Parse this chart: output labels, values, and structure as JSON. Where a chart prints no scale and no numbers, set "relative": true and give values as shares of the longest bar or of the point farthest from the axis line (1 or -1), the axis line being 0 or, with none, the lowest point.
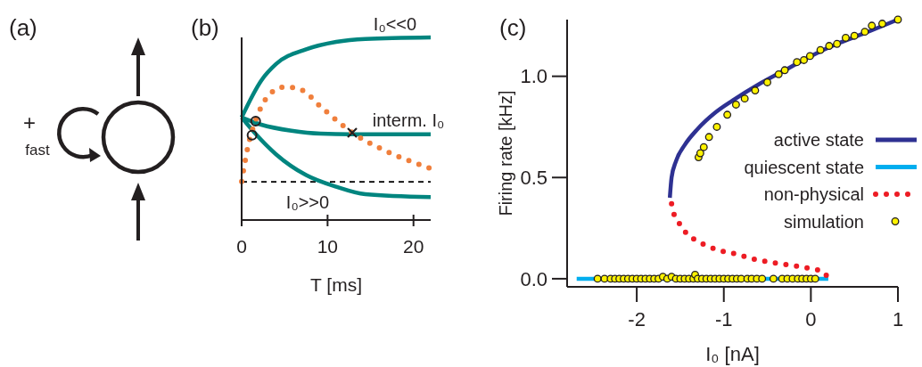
{
  "chart_data": [
    {
      "type": "other",
      "title": "(a)",
      "annotations": [
        "+",
        "fast"
      ]
    },
    {
      "type": "line",
      "title": "(b)",
      "xlabel": "T [ms]",
      "xlim": [
        0,
        22
      ],
      "xticks": [
        0,
        10,
        20
      ],
      "relative": true,
      "series": [
        {
          "type": "line",
          "color": "#00857f",
          "x": [
            0,
            2.3,
            4.0,
            7.5,
            11,
            14.4,
            22
          ],
          "values": [
            0.562,
            0.765,
            0.854,
            0.935,
            0.976,
            0.992,
            1.0
          ]
        },
        {
          "type": "line",
          "color": "#00857f",
          "x": [
            0,
            2.3,
            5.8,
            9.2,
            12.7,
            22
          ],
          "values": [
            0.562,
            0.522,
            0.489,
            0.473,
            0.47,
            0.47
          ]
        },
        {
          "type": "line",
          "color": "#00857f",
          "x": [
            0,
            1.6,
            4.0,
            7.5,
            11,
            14.4,
            22
          ],
          "values": [
            0.562,
            0.473,
            0.36,
            0.246,
            0.182,
            0.141,
            0.125
          ]
        },
        {
          "type": "line",
          "color": "#f07f3c",
          "line_style": "dotted",
          "x": [
            0,
            0.24,
            0.76,
            1.45,
            2.66,
            4.05,
            5.09,
            6.82,
            9.24,
            11.66,
            13.04,
            16.16,
            22
          ],
          "values": [
            0.211,
            0.279,
            0.408,
            0.522,
            0.652,
            0.716,
            0.729,
            0.716,
            0.619,
            0.522,
            0.473,
            0.392,
            0.282
          ]
        },
        {
          "type": "scatter",
          "marker": "circle",
          "color": "#231f20",
          "x": [
            1.63,
            1.21
          ],
          "values": [
            0.541,
            0.465
          ]
        },
        {
          "type": "scatter",
          "marker": "cross",
          "color": "#231f20",
          "x": [
            12.87
          ],
          "values": [
            0.478
          ]
        }
      ],
      "ref_lines": [
        {
          "axis": "y",
          "value": 0.209,
          "color": "#000000",
          "line_style": "dashed"
        }
      ],
      "annotations": [
        "I₀<<0",
        "interm. I₀",
        "I₀>>0"
      ]
    },
    {
      "type": "line",
      "title": "(c)",
      "xlabel": "I₀ [nA]",
      "ylabel": "Firing rate [kHz]",
      "xlim": [
        -2.8,
        1.0
      ],
      "ylim": [
        -0.04,
        1.28
      ],
      "xticks": [
        -2,
        -1,
        0,
        1
      ],
      "yticks": [
        {
          "value": 0,
          "label": "0.0"
        },
        {
          "value": 0.5,
          "label": "0.5"
        },
        {
          "value": 1,
          "label": "1.0"
        }
      ],
      "legend": "right",
      "series": [
        {
          "name": "active state",
          "type": "line",
          "color": "#2e3192",
          "x": [
            -1.62,
            -1.6,
            -1.55,
            -1.45,
            -1.3,
            -1.1,
            -0.9,
            -0.6,
            -0.3,
            0,
            0.3,
            0.6,
            1.0
          ],
          "values": [
            0.4,
            0.5,
            0.58,
            0.66,
            0.74,
            0.82,
            0.88,
            0.96,
            1.03,
            1.1,
            1.16,
            1.21,
            1.28
          ]
        },
        {
          "name": "quiescent state",
          "type": "line",
          "color": "#00aeef",
          "x": [
            -2.69,
            0.2
          ],
          "values": [
            0,
            0
          ]
        },
        {
          "name": "non-physical",
          "type": "line",
          "line_style": "dotted",
          "color": "#ed1c24",
          "x": [
            -1.6,
            -1.58,
            -1.52,
            -1.42,
            -1.32,
            -1.18,
            -1.05,
            -0.84,
            -0.64,
            -0.44,
            -0.2,
            0.0,
            0.14,
            0.2
          ],
          "values": [
            0.37,
            0.33,
            0.28,
            0.22,
            0.19,
            0.16,
            0.14,
            0.12,
            0.095,
            0.08,
            0.065,
            0.05,
            0.035,
            0.0
          ]
        },
        {
          "name": "simulation",
          "type": "scatter",
          "marker": "circle",
          "color": "#fff200",
          "x": [
            -2.45,
            -2.37,
            -2.3,
            -2.25,
            -2.2,
            -2.15,
            -2.1,
            -2.05,
            -2.0,
            -1.95,
            -1.9,
            -1.85,
            -1.8,
            -1.75,
            -1.7,
            -1.65,
            -1.6,
            -1.55,
            -1.5,
            -1.45,
            -1.4,
            -1.35,
            -1.33,
            -1.3,
            -1.25,
            -1.2,
            -1.15,
            -1.1,
            -1.05,
            -1.0,
            -0.95,
            -0.9,
            -0.85,
            -0.8,
            -0.73,
            -0.68,
            -0.62,
            -0.56,
            -0.43,
            -0.33,
            -0.27,
            -0.21,
            -0.15,
            -0.1,
            -0.05,
            0.0,
            0.05,
            -1.29,
            -1.27,
            -1.23,
            -1.17,
            -1.08,
            -0.96,
            -0.86,
            -0.76,
            -0.64,
            -0.5,
            -0.37,
            -0.3,
            -0.16,
            -0.08,
            -0.01,
            0.11,
            0.21,
            0.3,
            0.4,
            0.5,
            0.62,
            0.7,
            0.82,
            1.0
          ],
          "values": [
            0,
            0,
            0,
            0,
            0,
            0,
            0,
            0,
            0,
            0,
            0,
            0,
            0,
            0,
            0.01,
            0,
            0.01,
            0,
            0,
            0,
            0,
            0,
            0.02,
            0,
            0,
            0,
            0,
            0,
            0,
            0,
            0,
            0,
            0,
            0,
            0,
            0,
            0,
            0,
            0,
            0,
            0,
            0,
            0,
            0,
            0,
            0,
            0,
            0.6,
            0.62,
            0.65,
            0.7,
            0.75,
            0.81,
            0.86,
            0.89,
            0.93,
            0.97,
            1.01,
            1.03,
            1.07,
            1.08,
            1.1,
            1.13,
            1.15,
            1.16,
            1.19,
            1.2,
            1.22,
            1.25,
            1.26,
            1.28
          ]
        }
      ]
    }
  ]
}
